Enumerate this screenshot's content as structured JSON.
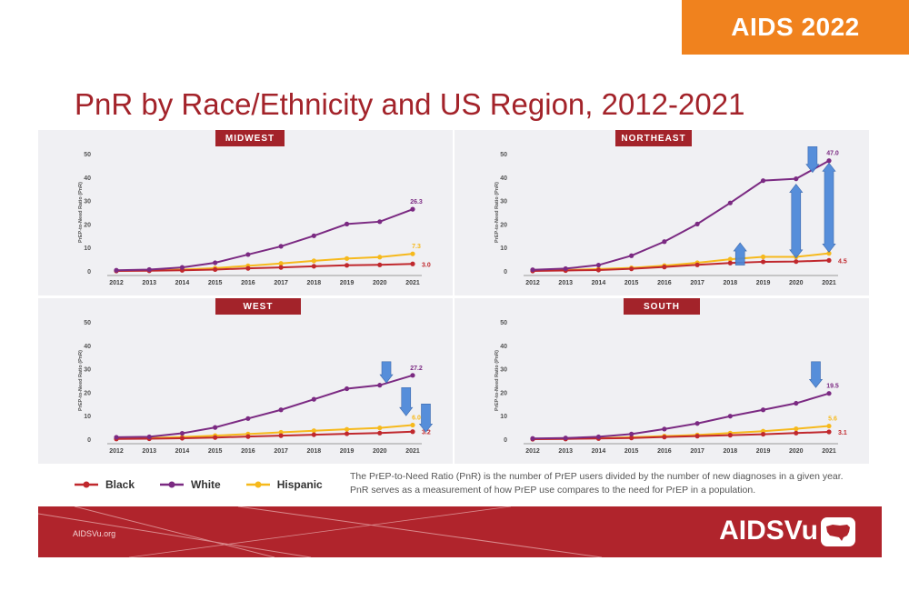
{
  "badge": "AIDS 2022",
  "slide_title": "PnR by Race/Ethnicity and US Region, 2012-2021",
  "colors": {
    "Black": "#c0282d",
    "White": "#7b2a82",
    "Hispanic": "#f6b91c",
    "accent": "#a3232a",
    "arrow": "#4a86d8"
  },
  "legend": {
    "black": "Black",
    "white": "White",
    "hispanic": "Hispanic"
  },
  "note": "The PrEP-to-Need Ratio (PnR) is the number of PrEP users divided by the number of new diagnoses in a given year. PnR serves as a measurement of how PrEP use compares to the need for PrEP in a population.",
  "footer": {
    "site": "AIDSVu.org",
    "brand": "AIDSVu"
  },
  "chart_data": [
    {
      "type": "line",
      "title": "MIDWEST",
      "ylabel": "PrEP-to-Need Ratio (PnR)",
      "categories": [
        "2012",
        "2013",
        "2014",
        "2015",
        "2016",
        "2017",
        "2018",
        "2019",
        "2020",
        "2021"
      ],
      "ylim": [
        0,
        50
      ],
      "yticks": [
        0,
        10,
        20,
        30,
        40,
        50
      ],
      "series": [
        {
          "name": "White",
          "values": [
            0.3,
            0.6,
            1.5,
            3.5,
            7,
            10.5,
            15,
            20,
            21,
            26.3
          ],
          "end_label": "26.3"
        },
        {
          "name": "Hispanic",
          "values": [
            0.1,
            0.3,
            0.6,
            1.2,
            2.2,
            3.2,
            4.3,
            5.3,
            5.9,
            7.3
          ],
          "end_label": "7.3"
        },
        {
          "name": "Black",
          "values": [
            0,
            0.1,
            0.3,
            0.6,
            1.1,
            1.5,
            2,
            2.4,
            2.6,
            3.0
          ],
          "end_label": "3.0"
        }
      ],
      "arrows": []
    },
    {
      "type": "line",
      "title": "NORTHEAST",
      "ylabel": "PrEP-to-Need Ratio (PnR)",
      "categories": [
        "2012",
        "2013",
        "2014",
        "2015",
        "2016",
        "2017",
        "2018",
        "2019",
        "2020",
        "2021"
      ],
      "ylim": [
        0,
        50
      ],
      "yticks": [
        0,
        10,
        20,
        30,
        40,
        50
      ],
      "series": [
        {
          "name": "White",
          "values": [
            0.5,
            1,
            2.5,
            6.5,
            12.5,
            20,
            29,
            38.5,
            39.3,
            47.0
          ],
          "end_label": "47.0"
        },
        {
          "name": "Hispanic",
          "values": [
            0.2,
            0.4,
            0.8,
            1.3,
            2.3,
            3.5,
            5,
            6,
            6,
            7.5
          ],
          "end_label": ""
        },
        {
          "name": "Black",
          "values": [
            0,
            0.2,
            0.4,
            0.9,
            1.7,
            2.6,
            3.4,
            3.9,
            4,
            4.5
          ],
          "end_label": "4.5"
        }
      ],
      "arrows": [
        {
          "x": 6.3,
          "from": 2.5,
          "to": 12,
          "dir": "up"
        },
        {
          "x": 8.0,
          "from": 5.5,
          "to": 37,
          "dir": "both"
        },
        {
          "x": 9.0,
          "from": 8,
          "to": 46,
          "dir": "both"
        },
        {
          "x": 8.5,
          "from": 53,
          "to": 42,
          "dir": "down"
        }
      ]
    },
    {
      "type": "line",
      "title": "WEST",
      "ylabel": "PrEP-to-Need Ratio (PnR)",
      "categories": [
        "2012",
        "2013",
        "2014",
        "2015",
        "2016",
        "2017",
        "2018",
        "2019",
        "2020",
        "2021"
      ],
      "ylim": [
        0,
        50
      ],
      "yticks": [
        0,
        10,
        20,
        30,
        40,
        50
      ],
      "series": [
        {
          "name": "White",
          "values": [
            0.8,
            1,
            2.5,
            5,
            8.8,
            12.5,
            17,
            21.5,
            23,
            27.2
          ],
          "end_label": "27.2"
        },
        {
          "name": "Hispanic",
          "values": [
            0.3,
            0.5,
            0.9,
            1.5,
            2.2,
            2.9,
            3.6,
            4.2,
            4.8,
            6.0
          ],
          "end_label": "6.0"
        },
        {
          "name": "Black",
          "values": [
            0.1,
            0.2,
            0.4,
            0.7,
            1.1,
            1.5,
            1.9,
            2.3,
            2.6,
            3.2
          ],
          "end_label": "3.2"
        }
      ],
      "arrows": [
        {
          "x": 8.2,
          "from": 33,
          "to": 24,
          "dir": "down"
        },
        {
          "x": 8.8,
          "from": 22,
          "to": 10,
          "dir": "down"
        },
        {
          "x": 9.4,
          "from": 15,
          "to": 3,
          "dir": "down"
        }
      ]
    },
    {
      "type": "line",
      "title": "SOUTH",
      "ylabel": "PrEP-to-Need Ratio (PnR)",
      "categories": [
        "2012",
        "2013",
        "2014",
        "2015",
        "2016",
        "2017",
        "2018",
        "2019",
        "2020",
        "2021"
      ],
      "ylim": [
        0,
        50
      ],
      "yticks": [
        0,
        10,
        20,
        30,
        40,
        50
      ],
      "series": [
        {
          "name": "White",
          "values": [
            0.3,
            0.5,
            1,
            2.2,
            4.3,
            6.7,
            9.8,
            12.5,
            15.3,
            19.5
          ],
          "end_label": "19.5"
        },
        {
          "name": "Hispanic",
          "values": [
            0.1,
            0.2,
            0.4,
            0.8,
            1.3,
            1.8,
            2.6,
            3.4,
            4.4,
            5.6
          ],
          "end_label": "5.6"
        },
        {
          "name": "Black",
          "values": [
            0,
            0.1,
            0.3,
            0.5,
            0.9,
            1.3,
            1.7,
            2.1,
            2.6,
            3.1
          ],
          "end_label": "3.1"
        }
      ],
      "arrows": [
        {
          "x": 8.6,
          "from": 33,
          "to": 22,
          "dir": "down"
        }
      ]
    }
  ]
}
